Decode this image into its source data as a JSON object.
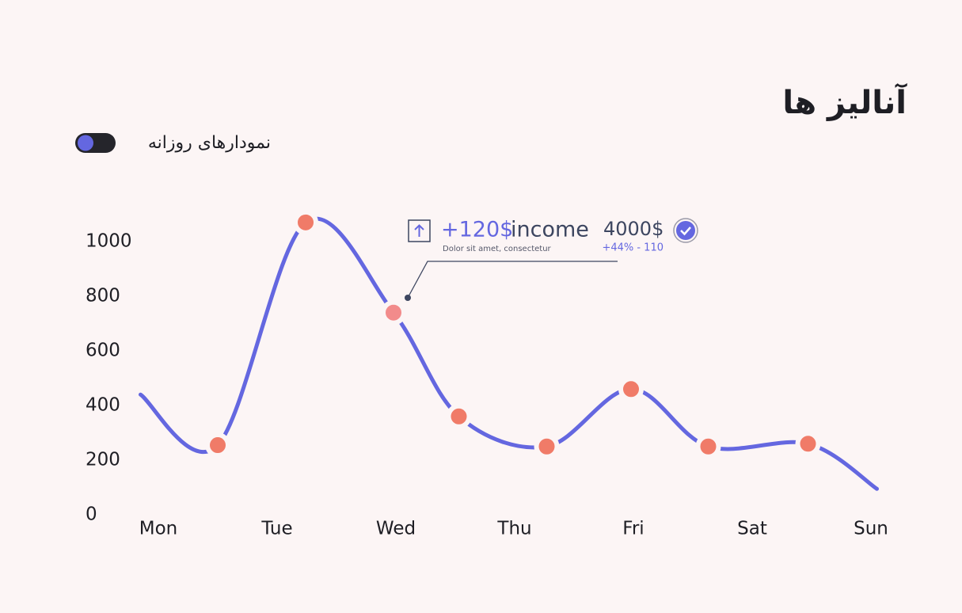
{
  "chart_data": {
    "type": "line",
    "title": "آنالیز ها",
    "toggle_label": "نمودارهای روزانه",
    "xlim": [
      -0.5,
      6.5
    ],
    "xticks": [
      {
        "value": 0,
        "label": "Mon"
      },
      {
        "value": 1,
        "label": "Tue"
      },
      {
        "value": 2,
        "label": "Wed"
      },
      {
        "value": 3,
        "label": "Thu"
      },
      {
        "value": 4,
        "label": "Fri"
      },
      {
        "value": 5,
        "label": "Sat"
      },
      {
        "value": 6,
        "label": "Sun"
      }
    ],
    "ylim": [
      0,
      1100
    ],
    "yticks": [
      0,
      200,
      400,
      600,
      800,
      1000
    ],
    "series": [
      {
        "color": "#6467e0",
        "marker_color": "#f07b68",
        "x": [
          -0.15,
          0.5,
          1.24,
          1.98,
          2.53,
          3.27,
          3.98,
          4.63,
          5.47,
          6.05
        ],
        "values": [
          440,
          255,
          1070,
          740,
          360,
          250,
          460,
          250,
          260,
          95
        ]
      }
    ],
    "highlight": {
      "index": 3,
      "color": "#f28b8b"
    },
    "annotation": {
      "change": "+120$",
      "label": "income",
      "amount": "4000$",
      "note": "Dolor sit amet, consectetur",
      "delta": "+44% - 110"
    }
  }
}
